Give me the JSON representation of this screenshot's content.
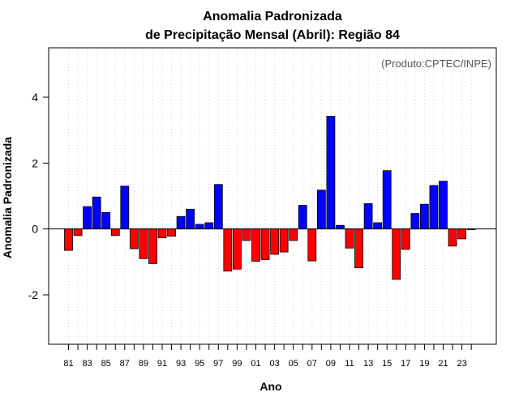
{
  "chart_data": {
    "type": "bar",
    "title": "Anomalia Padronizada",
    "subtitle": "de Precipitação Mensal (Abril): Região 84",
    "xlabel": "Ano",
    "ylabel": "Anomalia Padronizada",
    "annotation": "(Produto:CPTEC/INPE)",
    "ylim": [
      -3.5,
      5.5
    ],
    "yticks": [
      -2,
      0,
      2,
      4
    ],
    "ytick_labels": [
      "-2",
      "0",
      "2",
      "4"
    ],
    "categories": [
      "81",
      "82",
      "83",
      "84",
      "85",
      "86",
      "87",
      "88",
      "89",
      "90",
      "91",
      "92",
      "93",
      "94",
      "95",
      "96",
      "97",
      "98",
      "99",
      "00",
      "01",
      "02",
      "03",
      "04",
      "05",
      "06",
      "07",
      "08",
      "09",
      "10",
      "11",
      "12",
      "13",
      "14",
      "15",
      "16",
      "17",
      "18",
      "19",
      "20",
      "21",
      "22",
      "23",
      "24"
    ],
    "xtick_labels": [
      "81",
      "83",
      "85",
      "87",
      "89",
      "91",
      "93",
      "95",
      "97",
      "99",
      "01",
      "03",
      "05",
      "07",
      "09",
      "11",
      "13",
      "15",
      "17",
      "19",
      "21",
      "23"
    ],
    "values": [
      -0.65,
      -0.2,
      0.68,
      0.97,
      0.5,
      -0.2,
      1.3,
      -0.6,
      -0.9,
      -1.05,
      -0.27,
      -0.22,
      0.38,
      0.6,
      0.14,
      0.19,
      1.35,
      -1.28,
      -1.22,
      -0.35,
      -0.98,
      -0.93,
      -0.77,
      -0.7,
      -0.35,
      0.72,
      -0.97,
      1.18,
      3.42,
      0.11,
      -0.58,
      -1.18,
      0.77,
      0.19,
      1.77,
      -1.53,
      -0.62,
      0.47,
      0.75,
      1.32,
      1.45,
      -0.52,
      -0.3,
      -0.02
    ],
    "colors": {
      "positive": "#0000ff",
      "negative": "#ff0000",
      "zero_line": "#000000",
      "grid": "#d3d3d3"
    },
    "grid": "vertical-dotted",
    "legend": "none"
  }
}
